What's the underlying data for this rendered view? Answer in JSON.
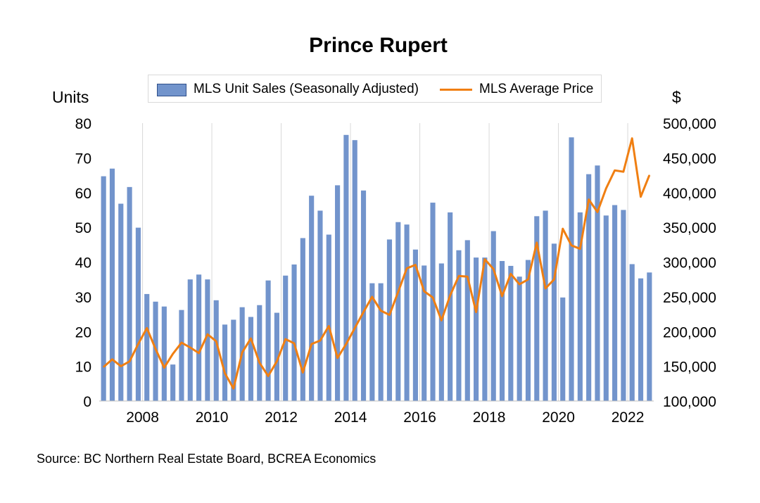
{
  "chart_data": {
    "type": "bar",
    "title": "Prince Rupert",
    "left_axis_unit": "Units",
    "right_axis_unit": "$",
    "source": "Source:  BC Northern Real Estate Board, BCREA Economics",
    "y_left_lim": [
      0,
      80
    ],
    "y_right_lim": [
      100000,
      500000
    ],
    "y_left_ticks": [
      "0",
      "10",
      "20",
      "30",
      "40",
      "50",
      "60",
      "70",
      "80"
    ],
    "y_right_ticks": [
      "100,000",
      "150,000",
      "200,000",
      "250,000",
      "300,000",
      "350,000",
      "400,000",
      "450,000",
      "500,000"
    ],
    "x_ticks": [
      "2008",
      "2010",
      "2012",
      "2014",
      "2016",
      "2018",
      "2020",
      "2022"
    ],
    "x_tick_quarter_index": [
      5,
      13,
      21,
      29,
      37,
      45,
      53,
      61
    ],
    "grid": "vertical",
    "legend_position": "top",
    "quarters": [
      "2006 Q3",
      "2006 Q4",
      "2007 Q1",
      "2007 Q2",
      "2007 Q3",
      "2007 Q4",
      "2008 Q1",
      "2008 Q2",
      "2008 Q3",
      "2008 Q4",
      "2009 Q1",
      "2009 Q2",
      "2009 Q3",
      "2009 Q4",
      "2010 Q1",
      "2010 Q2",
      "2010 Q3",
      "2010 Q4",
      "2011 Q1",
      "2011 Q2",
      "2011 Q3",
      "2011 Q4",
      "2012 Q1",
      "2012 Q2",
      "2012 Q3",
      "2012 Q4",
      "2013 Q1",
      "2013 Q2",
      "2013 Q3",
      "2013 Q4",
      "2014 Q1",
      "2014 Q2",
      "2014 Q3",
      "2014 Q4",
      "2015 Q1",
      "2015 Q2",
      "2015 Q3",
      "2015 Q4",
      "2016 Q1",
      "2016 Q2",
      "2016 Q3",
      "2016 Q4",
      "2017 Q1",
      "2017 Q2",
      "2017 Q3",
      "2017 Q4",
      "2018 Q1",
      "2018 Q2",
      "2018 Q3",
      "2018 Q4",
      "2019 Q1",
      "2019 Q2",
      "2019 Q3",
      "2019 Q4",
      "2020 Q1",
      "2020 Q2",
      "2020 Q3",
      "2020 Q4",
      "2021 Q1",
      "2021 Q2",
      "2021 Q3",
      "2021 Q4",
      "2022 Q1",
      "2022 Q2"
    ],
    "series": [
      {
        "name": "MLS Unit Sales (Seasonally Adjusted)",
        "type": "bar",
        "axis": "left",
        "color": "#7294cc",
        "values": [
          64.7,
          66.9,
          56.8,
          61.6,
          49.9,
          30.8,
          28.6,
          27.2,
          10.5,
          26.2,
          35.0,
          36.4,
          35.0,
          29.0,
          22.0,
          23.4,
          27.0,
          24.2,
          27.6,
          34.7,
          25.4,
          36.1,
          39.3,
          46.9,
          59.1,
          54.8,
          47.9,
          62.1,
          76.6,
          75.1,
          60.6,
          33.9,
          33.9,
          46.5,
          51.5,
          50.8,
          43.6,
          39.0,
          57.1,
          39.6,
          54.3,
          43.4,
          46.3,
          41.3,
          41.3,
          48.9,
          40.3,
          38.9,
          35.8,
          40.6,
          53.2,
          54.8,
          45.3,
          29.8,
          75.9,
          54.3,
          65.3,
          67.8,
          53.4,
          56.4,
          55.0,
          39.4,
          35.3,
          37.0
        ]
      },
      {
        "name": "MLS Average Price",
        "type": "line",
        "axis": "right",
        "color": "#f07f12",
        "values": [
          149000,
          160000,
          150000,
          157000,
          182000,
          205000,
          175000,
          148000,
          168000,
          184000,
          177000,
          169000,
          196000,
          186000,
          140000,
          118000,
          170000,
          190000,
          155000,
          136000,
          157000,
          189000,
          183000,
          141000,
          182000,
          187000,
          208000,
          162000,
          182000,
          205000,
          228000,
          250000,
          230000,
          224000,
          257000,
          291000,
          296000,
          258000,
          249000,
          216000,
          252000,
          280000,
          279000,
          228000,
          304000,
          290000,
          251000,
          283000,
          268000,
          275000,
          328000,
          262000,
          275000,
          348000,
          324000,
          319000,
          390000,
          372000,
          406000,
          432000,
          430000,
          478000,
          394000,
          425000
        ]
      }
    ]
  }
}
